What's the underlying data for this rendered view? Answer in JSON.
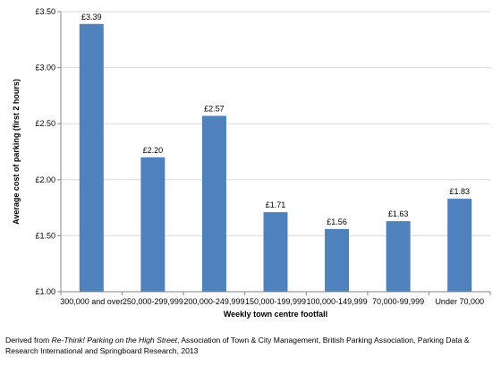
{
  "chart_data": {
    "type": "bar",
    "categories": [
      "300,000 and over",
      "250,000-299,999",
      "200,000-249,999",
      "150,000-199,999",
      "100,000-149,999",
      "70,000-99,999",
      "Under 70,000"
    ],
    "values": [
      3.39,
      2.2,
      2.57,
      1.71,
      1.56,
      1.63,
      1.83
    ],
    "data_labels": [
      "£3.39",
      "£2.20",
      "£2.57",
      "£1.71",
      "£1.56",
      "£1.63",
      "£1.83"
    ],
    "xlabel": "Weekly town centre footfall",
    "ylabel": "Average cost of parking (first 2 hours)",
    "ylim": [
      1.0,
      3.5
    ],
    "yticks": [
      1.0,
      1.5,
      2.0,
      2.5,
      3.0,
      3.5
    ],
    "ytick_labels": [
      "£1.00",
      "£1.50",
      "£2.00",
      "£2.50",
      "£3.00",
      "£3.50"
    ],
    "grid": true,
    "bar_color": "#4F81BD",
    "grid_color": "#D9D9D9"
  },
  "source_note": {
    "prefix": "Derived from ",
    "title_italic": "Re-Think! Parking on the High Street",
    "rest": ", Association of Town & City Management, British Parking Association, Parking Data & Research International and Springboard Research, 2013"
  }
}
